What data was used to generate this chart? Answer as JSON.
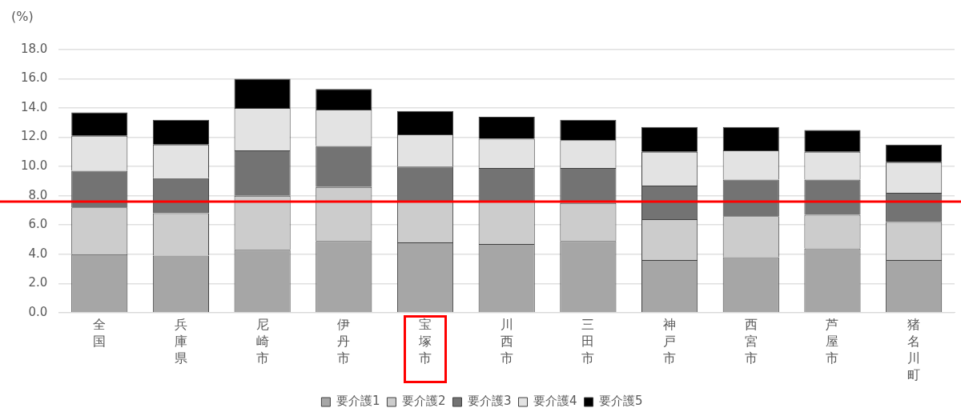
{
  "chart_data": {
    "type": "bar",
    "ylabel": "(%)",
    "stacked": true,
    "categories": [
      "全国",
      "兵庫県",
      "尼崎市",
      "伊丹市",
      "宝塚市",
      "川西市",
      "三田市",
      "神戸市",
      "西宮市",
      "芦屋市",
      "猪名川町"
    ],
    "series": [
      {
        "name": "要介護1",
        "color": "#a6a6a6",
        "values": [
          4.0,
          3.9,
          4.3,
          4.9,
          4.8,
          4.7,
          4.9,
          3.6,
          3.8,
          4.4,
          3.6
        ]
      },
      {
        "name": "要介護2",
        "color": "#cccccc",
        "values": [
          3.2,
          2.9,
          3.7,
          3.7,
          2.8,
          2.9,
          2.6,
          2.8,
          2.8,
          2.3,
          2.6
        ]
      },
      {
        "name": "要介護3",
        "color": "#737373",
        "values": [
          2.5,
          2.4,
          3.1,
          2.8,
          2.4,
          2.3,
          2.4,
          2.3,
          2.5,
          2.4,
          2.0
        ]
      },
      {
        "name": "要介護4",
        "color": "#e3e3e3",
        "values": [
          2.4,
          2.3,
          2.9,
          2.5,
          2.2,
          2.0,
          1.9,
          2.3,
          2.0,
          1.9,
          2.1
        ]
      },
      {
        "name": "要介護5",
        "color": "#000000",
        "values": [
          1.6,
          1.7,
          2.0,
          1.4,
          1.6,
          1.5,
          1.4,
          1.7,
          1.6,
          1.5,
          1.2
        ]
      }
    ],
    "ylim": [
      0,
      18
    ],
    "yticks": [
      {
        "value": 0,
        "label": "0.0"
      },
      {
        "value": 2,
        "label": "2.0"
      },
      {
        "value": 4,
        "label": "4.0"
      },
      {
        "value": 6,
        "label": "6.0"
      },
      {
        "value": 8,
        "label": "8.0"
      },
      {
        "value": 10,
        "label": "10.0"
      },
      {
        "value": 12,
        "label": "12.0"
      },
      {
        "value": 14,
        "label": "14.0"
      },
      {
        "value": 16,
        "label": "16.0"
      },
      {
        "value": 18,
        "label": "18.0"
      }
    ],
    "grid": "y",
    "legend": "bottom",
    "ref_lines": [
      {
        "axis": "y",
        "value": 7.6,
        "color": "#ff0000"
      }
    ]
  }
}
